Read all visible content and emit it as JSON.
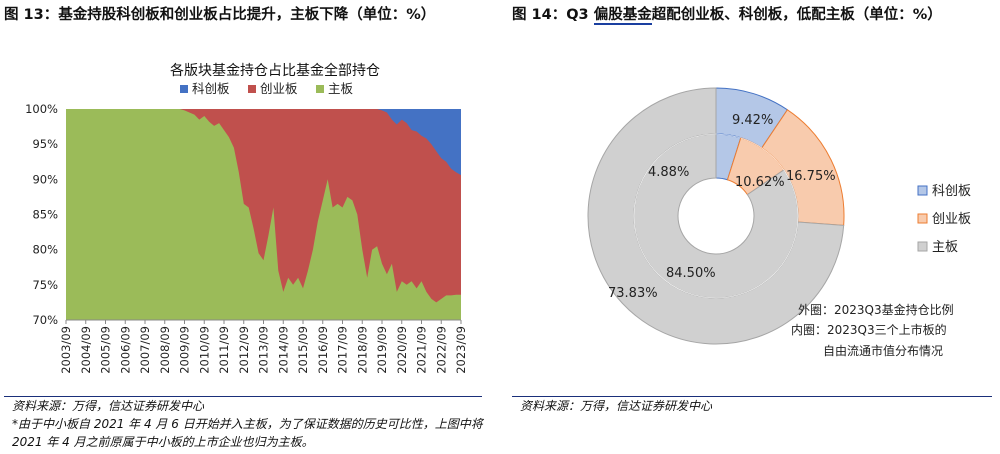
{
  "left": {
    "figure_title": "图 13：基金持股科创板和创业板占比提升，主板下降（单位：%）",
    "source": "资料来源：万得，信达证券研发中心",
    "note": "*由于中小板自 2021 年 4 月 6 日开始并入主板，为了保证数据的历史可比性，上图中将 2021 年 4 月之前原属于中小板的上市企业也归为主板。"
  },
  "right": {
    "figure_title": "图 14：Q3 偏股基金超配创业板、科创板，低配主板（单位：%）",
    "source": "资料来源：万得，信达证券研发中心"
  },
  "chart_data": [
    {
      "type": "area",
      "title": "各版块基金持仓占比基金全部持仓",
      "xlabel": "",
      "ylabel": "",
      "ylim": [
        70,
        100
      ],
      "y_ticks": [
        "70%",
        "75%",
        "80%",
        "85%",
        "90%",
        "95%",
        "100%"
      ],
      "x_ticks": [
        "2003/09",
        "2004/09",
        "2005/09",
        "2006/09",
        "2007/09",
        "2008/09",
        "2009/09",
        "2010/09",
        "2011/09",
        "2012/09",
        "2013/09",
        "2014/09",
        "2015/09",
        "2016/09",
        "2017/09",
        "2018/09",
        "2019/09",
        "2020/09",
        "2021/09",
        "2022/09",
        "2023/09"
      ],
      "legend_position": "top",
      "grid": false,
      "stacked": true,
      "series": [
        {
          "name": "科创板",
          "color": "#4472c4"
        },
        {
          "name": "创业板",
          "color": "#c0504d"
        },
        {
          "name": "主板",
          "color": "#9bbb59"
        }
      ],
      "x": [
        2003.75,
        2009.5,
        2009.75,
        2010.0,
        2010.25,
        2010.5,
        2010.75,
        2011.0,
        2011.25,
        2011.5,
        2011.75,
        2012.0,
        2012.25,
        2012.5,
        2012.75,
        2013.0,
        2013.25,
        2013.5,
        2013.75,
        2014.0,
        2014.25,
        2014.5,
        2014.75,
        2015.0,
        2015.25,
        2015.5,
        2015.75,
        2016.0,
        2016.25,
        2016.5,
        2016.75,
        2017.0,
        2017.25,
        2017.5,
        2017.75,
        2018.0,
        2018.25,
        2018.5,
        2018.75,
        2019.0,
        2019.25,
        2019.5,
        2019.75,
        2020.0,
        2020.25,
        2020.5,
        2020.75,
        2021.0,
        2021.25,
        2021.5,
        2021.75,
        2022.0,
        2022.25,
        2022.5,
        2022.75,
        2023.0,
        2023.25,
        2023.5,
        2023.75
      ],
      "main_board": [
        100,
        100,
        99.8,
        99.5,
        99.2,
        98.5,
        99.0,
        98.2,
        97.6,
        98.0,
        97.0,
        96.0,
        94.5,
        91.0,
        86.5,
        86.0,
        83.0,
        79.5,
        78.5,
        82.0,
        86.0,
        77.0,
        74.0,
        76.0,
        75.0,
        76.0,
        74.5,
        77.0,
        80.0,
        84.0,
        87.0,
        90.0,
        86.0,
        86.5,
        86.0,
        87.5,
        87.0,
        85.0,
        80.0,
        76.0,
        80.0,
        80.5,
        78.0,
        76.5,
        78.0,
        74.0,
        75.5,
        75.0,
        75.5,
        74.5,
        75.5,
        74.0,
        73.0,
        72.5,
        73.0,
        73.5,
        73.5,
        73.6,
        73.6
      ],
      "chinext_top": [
        100,
        100,
        100,
        100,
        100,
        100,
        100,
        100,
        100,
        100,
        100,
        100,
        100,
        100,
        100,
        100,
        100,
        100,
        100,
        100,
        100,
        100,
        100,
        100,
        100,
        100,
        100,
        100,
        100,
        100,
        100,
        100,
        100,
        100,
        100,
        100,
        100,
        100,
        100,
        100,
        100,
        100,
        99.8,
        99.5,
        98.5,
        97.8,
        98.5,
        98.0,
        97.0,
        96.8,
        96.2,
        95.8,
        95.0,
        94.0,
        93.0,
        92.5,
        91.5,
        91.0,
        90.6
      ]
    },
    {
      "type": "pie",
      "subtype": "double-donut",
      "categories": [
        "科创板",
        "创业板",
        "主板"
      ],
      "colors": [
        "#b4c7e7",
        "#f8cbad",
        "#d0d0d0"
      ],
      "edge_colors": [
        "#4472c4",
        "#ed7d31",
        "#a6a6a6"
      ],
      "outer_values": [
        9.42,
        16.75,
        73.83
      ],
      "inner_values": [
        4.88,
        10.62,
        84.5
      ],
      "outer_labels": [
        "9.42%",
        "16.75%",
        "73.83%"
      ],
      "inner_labels": [
        "4.88%",
        "10.62%",
        "84.50%"
      ],
      "legend_position": "right",
      "annotations": [
        "外圈：2023Q3基金持仓比例",
        "内圈：2023Q3三个上市板的",
        "自由流通市值分布情况"
      ]
    }
  ]
}
